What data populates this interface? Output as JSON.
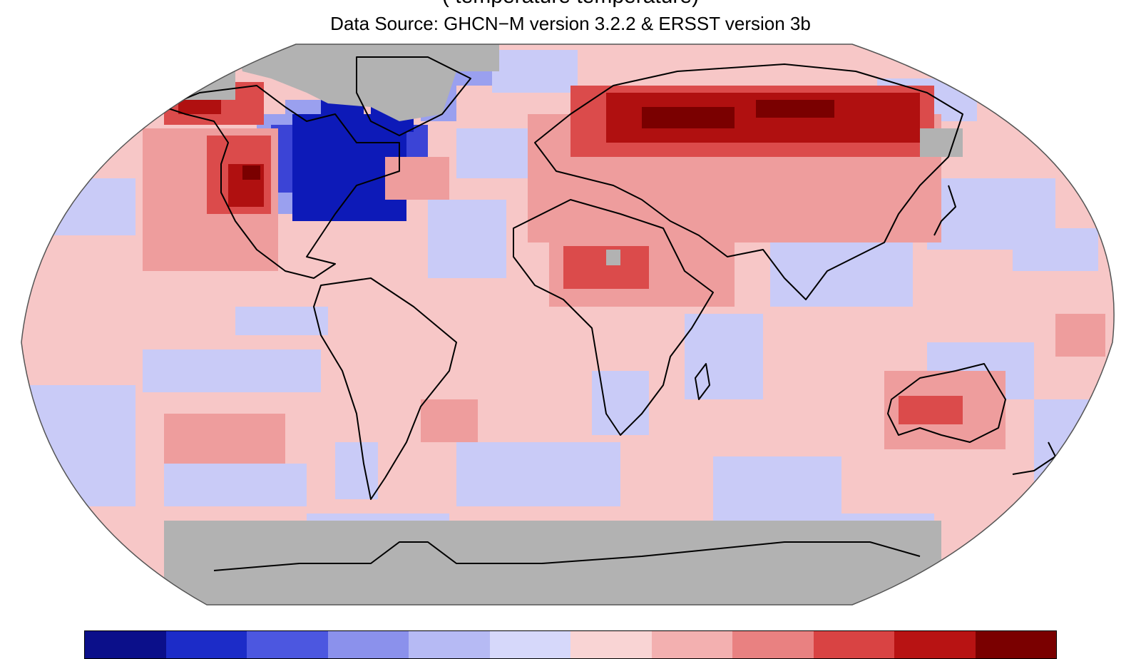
{
  "map": {
    "title_partial": "(     temperature                                    temperature)",
    "data_source": "Data Source: GHCN−M version 3.2.2 & ERSST version 3b",
    "projection": "Robinson",
    "missing_data_color": "#b2b2b2",
    "colors": {
      "strong_cold": "#0d1ab8",
      "cold": "#3b44d6",
      "moderate_cold": "#9aa0ef",
      "slight_cold": "#c9cbf7",
      "slight_warm": "#f7c7c7",
      "moderate_warm": "#ee9d9d",
      "warm": "#db4b4b",
      "strong_warm": "#b01010",
      "extreme_warm": "#7a0000"
    },
    "regions": [
      {
        "name": "Western North America",
        "anomaly": "warm"
      },
      {
        "name": "Eastern North America",
        "anomaly": "strong_cold"
      },
      {
        "name": "Northern Russia / Siberia",
        "anomaly": "extreme_warm"
      },
      {
        "name": "Central Africa",
        "anomaly": "warm"
      },
      {
        "name": "Australia",
        "anomaly": "warm"
      },
      {
        "name": "Greenland",
        "anomaly": "missing"
      },
      {
        "name": "Antarctica",
        "anomaly": "missing"
      }
    ]
  },
  "colorbar": {
    "colors": [
      "#0b0f8a",
      "#1c2cc8",
      "#4c57e0",
      "#8b91ec",
      "#b6baf4",
      "#d6d8fa",
      "#f9d4d4",
      "#f3b0b0",
      "#e98181",
      "#d94343",
      "#b81313",
      "#7a0000"
    ]
  }
}
